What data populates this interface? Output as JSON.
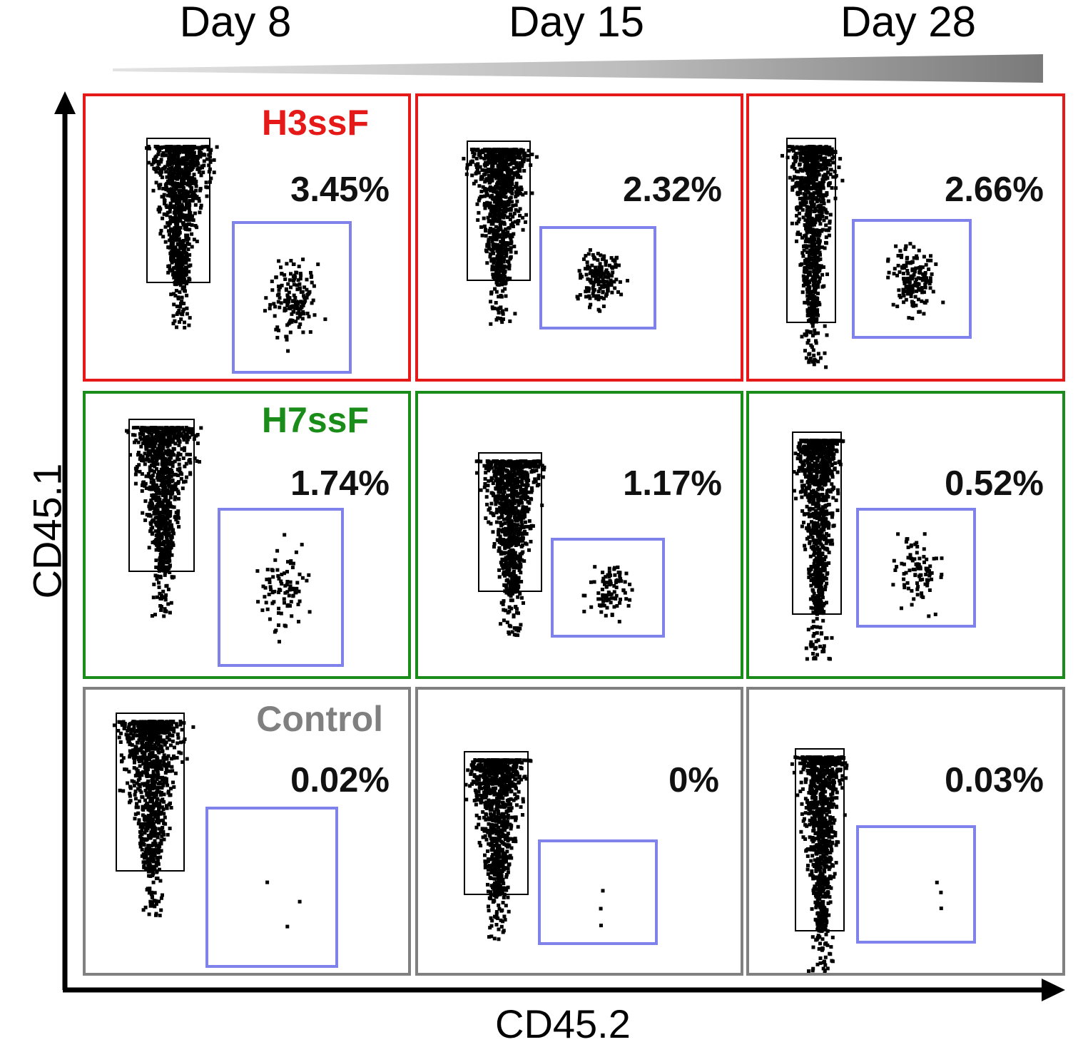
{
  "chart_data": {
    "type": "scatter",
    "title": "",
    "xlabel": "CD45.2",
    "ylabel": "CD45.1",
    "columns": [
      "Day 8",
      "Day 15",
      "Day 28"
    ],
    "rows": [
      {
        "group": "H3ssF",
        "color": "#e61919",
        "values": [
          "3.45%",
          "2.32%",
          "2.66%"
        ]
      },
      {
        "group": "H7ssF",
        "color": "#1a8c1a",
        "values": [
          "1.74%",
          "1.17%",
          "0.52%"
        ]
      },
      {
        "group": "Control",
        "color": "#808080",
        "values": [
          "0.02%",
          "0%",
          "0.03%"
        ]
      }
    ],
    "gate_color": "#7f82ea"
  }
}
